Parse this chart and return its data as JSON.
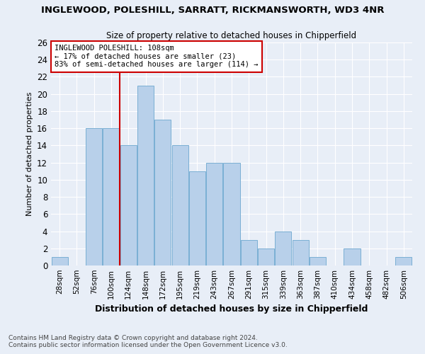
{
  "title_line1": "INGLEWOOD, POLESHILL, SARRATT, RICKMANSWORTH, WD3 4NR",
  "title_line2": "Size of property relative to detached houses in Chipperfield",
  "xlabel": "Distribution of detached houses by size in Chipperfield",
  "ylabel": "Number of detached properties",
  "categories": [
    "28sqm",
    "52sqm",
    "76sqm",
    "100sqm",
    "124sqm",
    "148sqm",
    "172sqm",
    "195sqm",
    "219sqm",
    "243sqm",
    "267sqm",
    "291sqm",
    "315sqm",
    "339sqm",
    "363sqm",
    "387sqm",
    "410sqm",
    "434sqm",
    "458sqm",
    "482sqm",
    "506sqm"
  ],
  "values": [
    1,
    0,
    16,
    16,
    14,
    21,
    17,
    14,
    11,
    12,
    12,
    3,
    2,
    4,
    3,
    1,
    0,
    2,
    0,
    0,
    1
  ],
  "bar_color": "#b8d0ea",
  "bar_edge_color": "#7aafd4",
  "red_line_x": 3.5,
  "annotation_text_line1": "INGLEWOOD POLESHILL: 108sqm",
  "annotation_text_line2": "← 17% of detached houses are smaller (23)",
  "annotation_text_line3": "83% of semi-detached houses are larger (114) →",
  "annotation_box_color": "#ffffff",
  "annotation_box_edge": "#cc0000",
  "red_line_color": "#cc0000",
  "footer_line1": "Contains HM Land Registry data © Crown copyright and database right 2024.",
  "footer_line2": "Contains public sector information licensed under the Open Government Licence v3.0.",
  "ylim": [
    0,
    26
  ],
  "yticks": [
    0,
    2,
    4,
    6,
    8,
    10,
    12,
    14,
    16,
    18,
    20,
    22,
    24,
    26
  ],
  "background_color": "#e8eef7",
  "grid_color": "#ffffff"
}
